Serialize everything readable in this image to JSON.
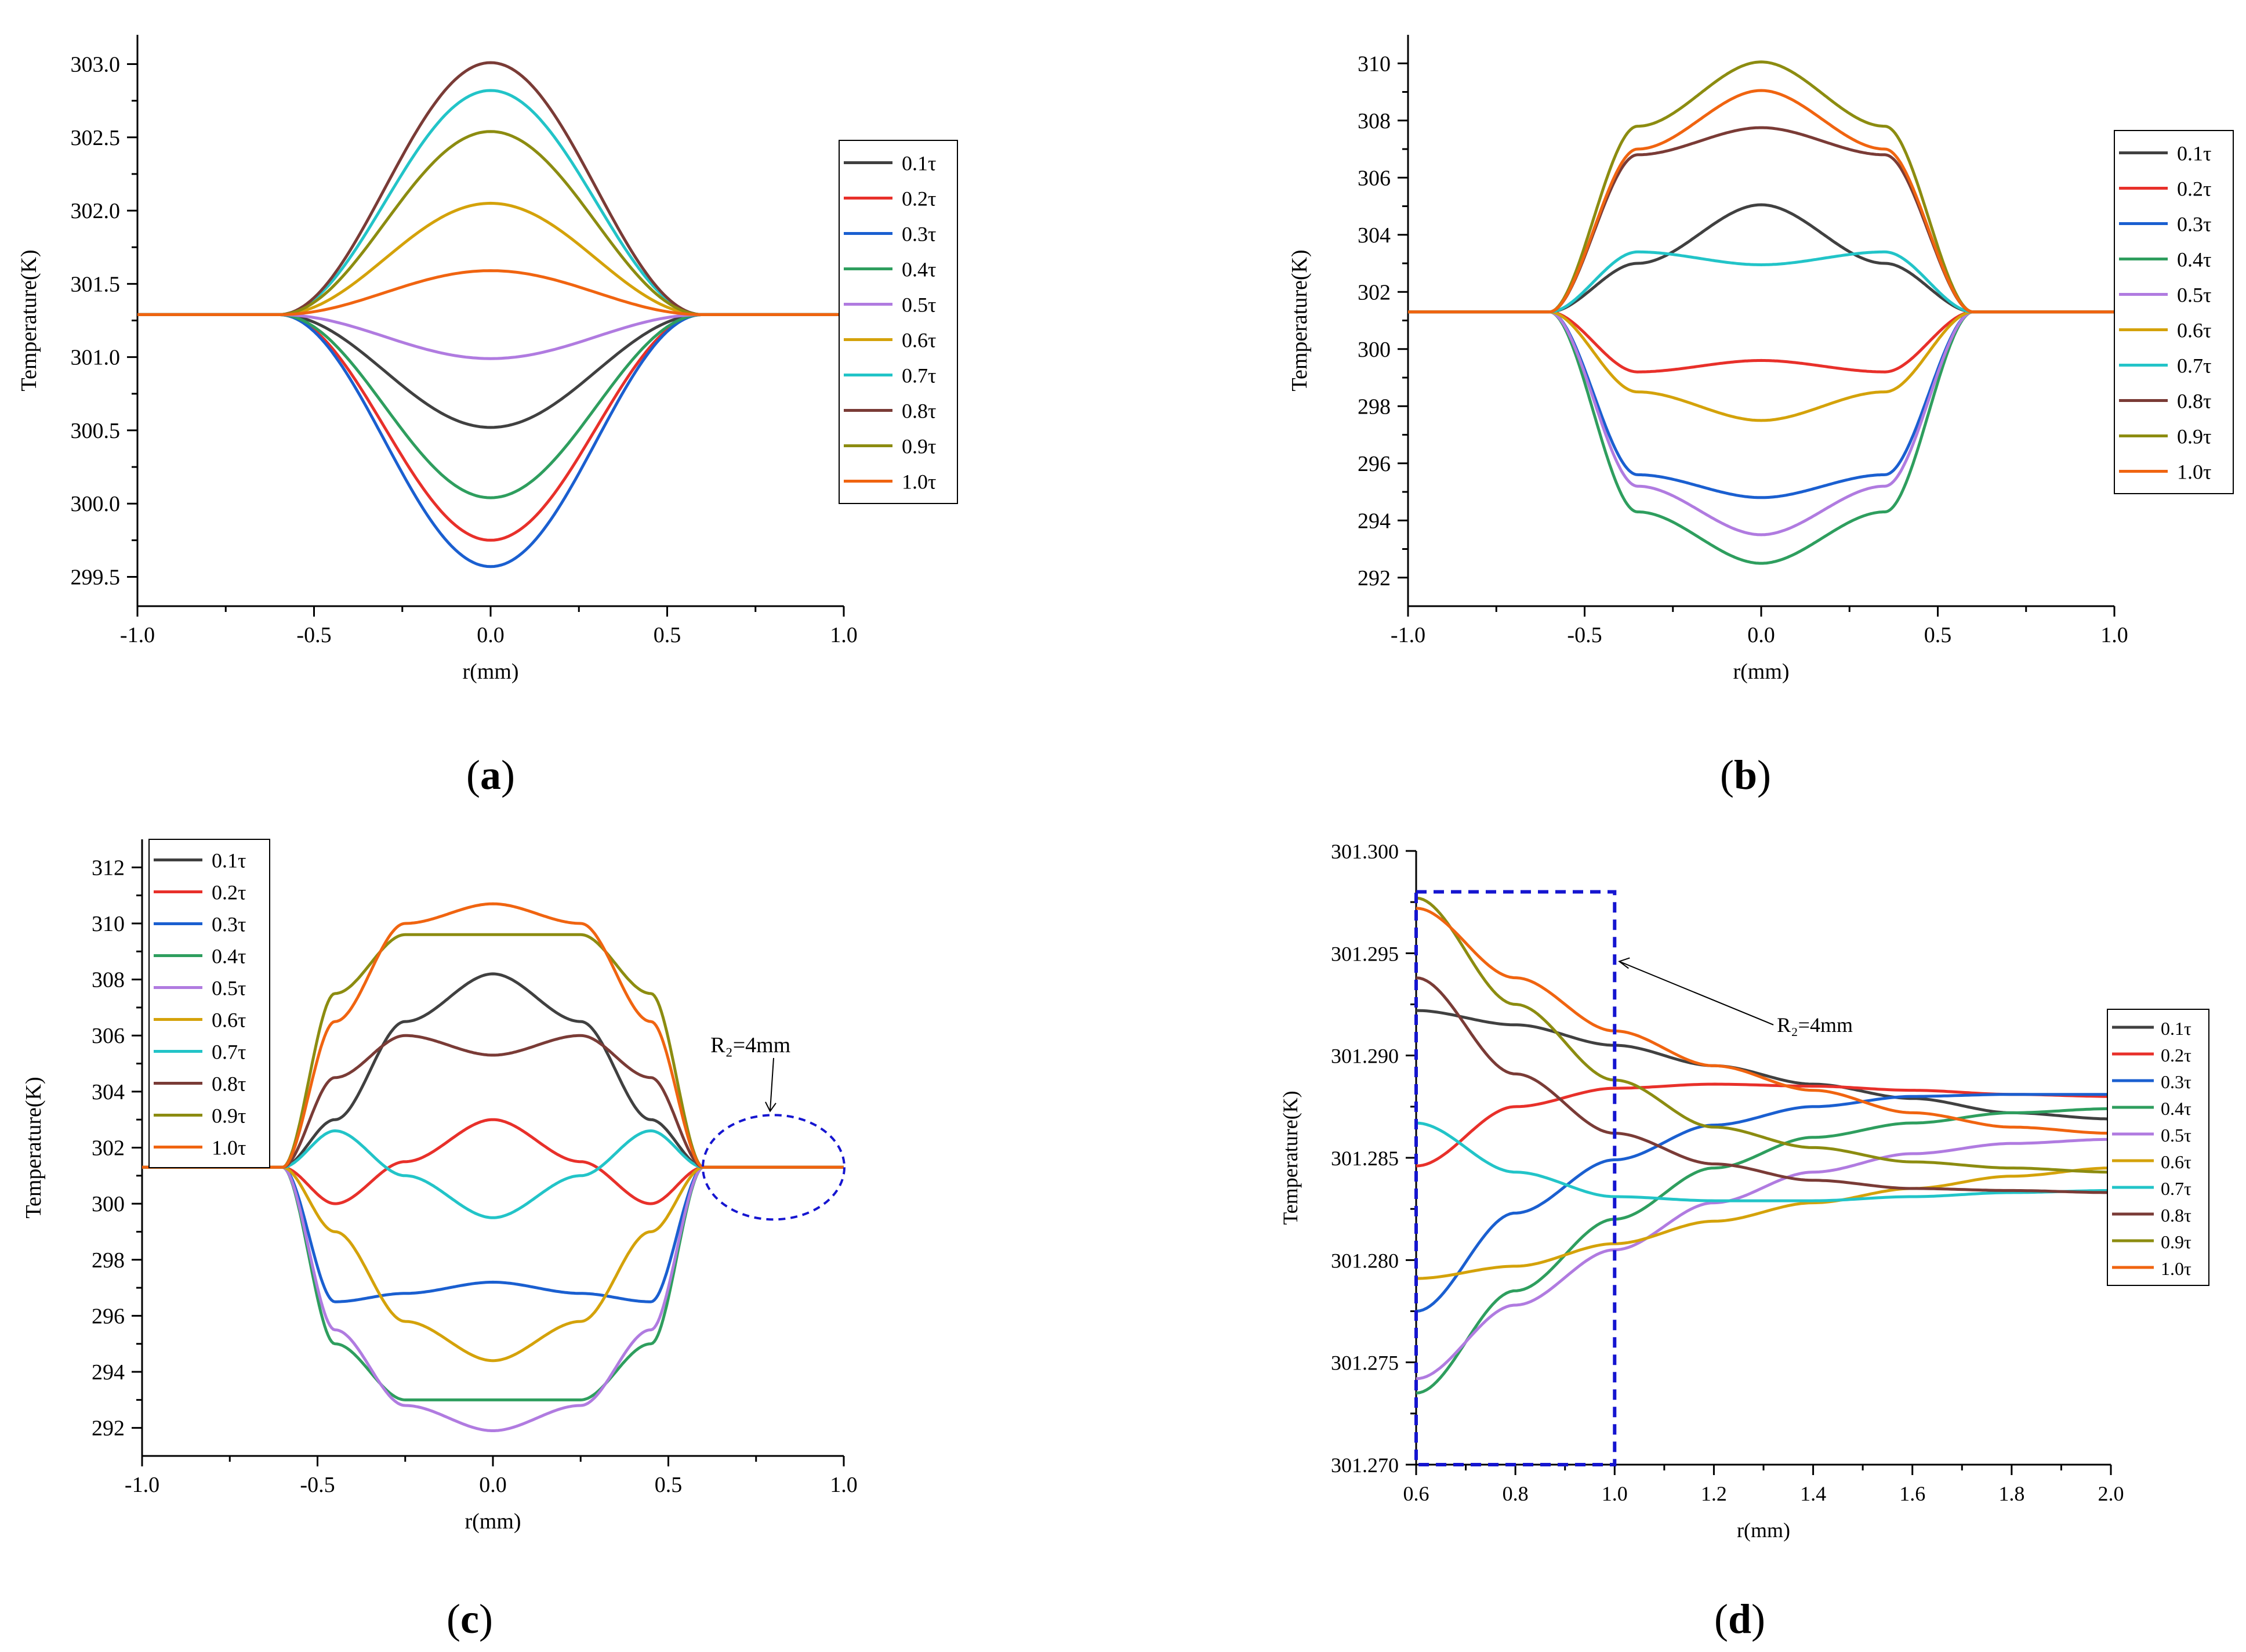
{
  "colors": [
    "#404040",
    "#e8302a",
    "#1a5fd0",
    "#2e9e5e",
    "#b07be0",
    "#d4a20a",
    "#22c4c8",
    "#7a3b36",
    "#8c8c10",
    "#f06410"
  ],
  "legend_labels": [
    "0.1τ",
    "0.2τ",
    "0.3τ",
    "0.4τ",
    "0.5τ",
    "0.6τ",
    "0.7τ",
    "0.8τ",
    "0.9τ",
    "1.0τ"
  ],
  "chart_data": [
    {
      "panel": "(a)",
      "type": "line",
      "xlabel": "r(mm)",
      "ylabel": "Temperature(K)",
      "xlim": [
        -1.0,
        1.0
      ],
      "ylim": [
        299.3,
        303.2
      ],
      "xticks": [
        "-1.0",
        "-0.5",
        "0.0",
        "0.5",
        "1.0"
      ],
      "yticks": [
        "299.5",
        "300.0",
        "300.5",
        "301.0",
        "301.5",
        "302.0",
        "302.5",
        "303.0"
      ],
      "legend_position": "right",
      "baseline": 301.29,
      "source_boundary": 0.6,
      "series": [
        {
          "name": "0.1τ",
          "center": 300.52
        },
        {
          "name": "0.2τ",
          "center": 299.75
        },
        {
          "name": "0.3τ",
          "center": 299.57
        },
        {
          "name": "0.4τ",
          "center": 300.04
        },
        {
          "name": "0.5τ",
          "center": 300.99
        },
        {
          "name": "0.6τ",
          "center": 302.05
        },
        {
          "name": "0.7τ",
          "center": 302.82
        },
        {
          "name": "0.8τ",
          "center": 303.01
        },
        {
          "name": "0.9τ",
          "center": 302.54
        },
        {
          "name": "1.0τ",
          "center": 301.59
        }
      ]
    },
    {
      "panel": "(b)",
      "type": "line",
      "xlabel": "r(mm)",
      "ylabel": "Temperature(K)",
      "xlim": [
        -1.0,
        1.0
      ],
      "ylim": [
        291,
        311
      ],
      "xticks": [
        "-1.0",
        "-0.5",
        "0.0",
        "0.5",
        "1.0"
      ],
      "yticks": [
        "292",
        "294",
        "296",
        "298",
        "300",
        "302",
        "304",
        "306",
        "308",
        "310"
      ],
      "legend_position": "right",
      "baseline": 301.3,
      "source_boundary": 0.6,
      "series": [
        {
          "name": "0.1τ",
          "points": [
            [
              0.0,
              305.05
            ],
            [
              0.35,
              303.0
            ]
          ]
        },
        {
          "name": "0.2τ",
          "points": [
            [
              0.0,
              299.6
            ],
            [
              0.35,
              299.2
            ]
          ]
        },
        {
          "name": "0.3τ",
          "points": [
            [
              0.0,
              294.8
            ],
            [
              0.35,
              295.6
            ]
          ]
        },
        {
          "name": "0.4τ",
          "points": [
            [
              0.0,
              292.5
            ],
            [
              0.35,
              294.3
            ]
          ]
        },
        {
          "name": "0.5τ",
          "points": [
            [
              0.0,
              293.5
            ],
            [
              0.35,
              295.2
            ]
          ]
        },
        {
          "name": "0.6τ",
          "points": [
            [
              0.0,
              297.5
            ],
            [
              0.35,
              298.5
            ]
          ]
        },
        {
          "name": "0.7τ",
          "points": [
            [
              0.0,
              302.95
            ],
            [
              0.35,
              303.4
            ]
          ]
        },
        {
          "name": "0.8τ",
          "points": [
            [
              0.0,
              307.75
            ],
            [
              0.35,
              306.8
            ]
          ]
        },
        {
          "name": "0.9τ",
          "points": [
            [
              0.0,
              310.05
            ],
            [
              0.35,
              307.8
            ]
          ]
        },
        {
          "name": "1.0τ",
          "points": [
            [
              0.0,
              309.05
            ],
            [
              0.35,
              307.0
            ]
          ]
        }
      ]
    },
    {
      "panel": "(c)",
      "type": "line",
      "xlabel": "r(mm)",
      "ylabel": "Temperature(K)",
      "xlim": [
        -1.0,
        1.0
      ],
      "ylim": [
        291,
        313
      ],
      "xticks": [
        "-1.0",
        "-0.5",
        "0.0",
        "0.5",
        "1.0"
      ],
      "yticks": [
        "292",
        "294",
        "296",
        "298",
        "300",
        "302",
        "304",
        "306",
        "308",
        "310",
        "312"
      ],
      "legend_position": "top-left",
      "baseline": 301.3,
      "source_boundary": 0.6,
      "annotation": "R₂=4mm",
      "series": [
        {
          "name": "0.1τ",
          "points": [
            [
              0.0,
              308.2
            ],
            [
              0.25,
              306.5
            ],
            [
              0.45,
              303.0
            ]
          ]
        },
        {
          "name": "0.2τ",
          "points": [
            [
              0.0,
              303.0
            ],
            [
              0.25,
              301.5
            ],
            [
              0.45,
              300.0
            ]
          ]
        },
        {
          "name": "0.3τ",
          "points": [
            [
              0.0,
              297.2
            ],
            [
              0.25,
              296.8
            ],
            [
              0.45,
              296.5
            ]
          ]
        },
        {
          "name": "0.4τ",
          "points": [
            [
              0.0,
              293.0
            ],
            [
              0.25,
              293.0
            ],
            [
              0.45,
              295.0
            ]
          ]
        },
        {
          "name": "0.5τ",
          "points": [
            [
              0.0,
              291.9
            ],
            [
              0.25,
              292.8
            ],
            [
              0.45,
              295.5
            ]
          ]
        },
        {
          "name": "0.6τ",
          "points": [
            [
              0.0,
              294.4
            ],
            [
              0.25,
              295.8
            ],
            [
              0.45,
              299.0
            ]
          ]
        },
        {
          "name": "0.7τ",
          "points": [
            [
              0.0,
              299.5
            ],
            [
              0.25,
              301.0
            ],
            [
              0.45,
              302.6
            ]
          ]
        },
        {
          "name": "0.8τ",
          "points": [
            [
              0.0,
              305.3
            ],
            [
              0.25,
              306.0
            ],
            [
              0.45,
              304.5
            ]
          ]
        },
        {
          "name": "0.9τ",
          "points": [
            [
              0.0,
              309.6
            ],
            [
              0.25,
              309.6
            ],
            [
              0.45,
              307.5
            ]
          ]
        },
        {
          "name": "1.0τ",
          "points": [
            [
              0.0,
              310.7
            ],
            [
              0.25,
              310.0
            ],
            [
              0.45,
              306.5
            ]
          ]
        }
      ]
    },
    {
      "panel": "(d)",
      "type": "line",
      "xlabel": "r(mm)",
      "ylabel": "Temperature(K)",
      "xlim": [
        0.6,
        2.0
      ],
      "ylim": [
        301.27,
        301.3
      ],
      "xticks": [
        "0.6",
        "0.8",
        "1.0",
        "1.2",
        "1.4",
        "1.6",
        "1.8",
        "2.0"
      ],
      "yticks": [
        "301.270",
        "301.275",
        "301.280",
        "301.285",
        "301.290",
        "301.295",
        "301.300"
      ],
      "legend_position": "right",
      "annotation": "R₂=4mm",
      "series": [
        {
          "name": "0.1τ",
          "x": [
            0.6,
            0.8,
            1.0,
            1.2,
            1.4,
            1.6,
            1.8,
            2.0
          ],
          "values": [
            301.2922,
            301.2915,
            301.2905,
            301.2895,
            301.2886,
            301.2879,
            301.2872,
            301.2869
          ]
        },
        {
          "name": "0.2τ",
          "x": [
            0.6,
            0.8,
            1.0,
            1.2,
            1.4,
            1.6,
            1.8,
            2.0
          ],
          "values": [
            301.2846,
            301.2875,
            301.2884,
            301.2886,
            301.2885,
            301.2883,
            301.2881,
            301.288
          ]
        },
        {
          "name": "0.3τ",
          "x": [
            0.6,
            0.8,
            1.0,
            1.2,
            1.4,
            1.6,
            1.8,
            2.0
          ],
          "values": [
            301.2775,
            301.2823,
            301.2849,
            301.2866,
            301.2875,
            301.288,
            301.2881,
            301.2881
          ]
        },
        {
          "name": "0.4τ",
          "x": [
            0.6,
            0.8,
            1.0,
            1.2,
            1.4,
            1.6,
            1.8,
            2.0
          ],
          "values": [
            301.2735,
            301.2785,
            301.282,
            301.2845,
            301.286,
            301.2867,
            301.2872,
            301.2874
          ]
        },
        {
          "name": "0.5τ",
          "x": [
            0.6,
            0.8,
            1.0,
            1.2,
            1.4,
            1.6,
            1.8,
            2.0
          ],
          "values": [
            301.2742,
            301.2778,
            301.2805,
            301.2828,
            301.2843,
            301.2852,
            301.2857,
            301.2859
          ]
        },
        {
          "name": "0.6τ",
          "x": [
            0.6,
            0.8,
            1.0,
            1.2,
            1.4,
            1.6,
            1.8,
            2.0
          ],
          "values": [
            301.2791,
            301.2797,
            301.2808,
            301.2819,
            301.2828,
            301.2835,
            301.2841,
            301.2845
          ]
        },
        {
          "name": "0.7τ",
          "x": [
            0.6,
            0.8,
            1.0,
            1.2,
            1.4,
            1.6,
            1.8,
            2.0
          ],
          "values": [
            301.2867,
            301.2843,
            301.2831,
            301.2829,
            301.2829,
            301.2831,
            301.2833,
            301.2834
          ]
        },
        {
          "name": "0.8τ",
          "x": [
            0.6,
            0.8,
            1.0,
            1.2,
            1.4,
            1.6,
            1.8,
            2.0
          ],
          "values": [
            301.2938,
            301.2891,
            301.2862,
            301.2847,
            301.2839,
            301.2835,
            301.2834,
            301.2833
          ]
        },
        {
          "name": "0.9τ",
          "x": [
            0.6,
            0.8,
            1.0,
            1.2,
            1.4,
            1.6,
            1.8,
            2.0
          ],
          "values": [
            301.2977,
            301.2925,
            301.2888,
            301.2865,
            301.2855,
            301.2848,
            301.2845,
            301.2843
          ]
        },
        {
          "name": "1.0τ",
          "x": [
            0.6,
            0.8,
            1.0,
            1.2,
            1.4,
            1.6,
            1.8,
            2.0
          ],
          "values": [
            301.2972,
            301.2938,
            301.2912,
            301.2895,
            301.2883,
            301.2872,
            301.2865,
            301.2862
          ]
        }
      ]
    }
  ]
}
